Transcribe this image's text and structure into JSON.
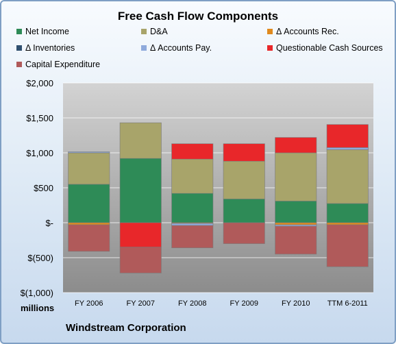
{
  "chart_data": {
    "type": "bar",
    "stacked": true,
    "title": "Free Cash Flow Components",
    "subtitle": "Windstream Corporation",
    "ylabel": "millions",
    "ylim": [
      -1000,
      2000
    ],
    "yticks": [
      2000,
      1500,
      1000,
      500,
      0,
      -500,
      -1000
    ],
    "ytick_labels": [
      "$2,000",
      "$1,500",
      "$1,000",
      "$500",
      "$-",
      "$(500)",
      "$(1,000)"
    ],
    "grid": true,
    "legend_position": "top",
    "categories": [
      "FY 2006",
      "FY 2007",
      "FY 2008",
      "FY 2009",
      "FY 2010",
      "TTM 6-2011"
    ],
    "series": [
      {
        "name": "Net Income",
        "color": "#2e8b57",
        "values": [
          550,
          920,
          420,
          340,
          310,
          275
        ]
      },
      {
        "name": "D&A",
        "color": "#a8a46a",
        "values": [
          450,
          510,
          490,
          540,
          690,
          770
        ]
      },
      {
        "name": "Δ Accounts Rec.",
        "color": "#e08a1e",
        "values": [
          -30,
          0,
          -10,
          0,
          -30,
          -30
        ]
      },
      {
        "name": "Δ Inventories",
        "color": "#2f4f6f",
        "values": [
          0,
          0,
          0,
          0,
          0,
          0
        ]
      },
      {
        "name": "Δ Accounts Pay.",
        "color": "#8faadc",
        "values": [
          15,
          0,
          -30,
          0,
          -20,
          30
        ]
      },
      {
        "name": "Questionable Cash Sources",
        "color": "#e8272a",
        "values": [
          0,
          -350,
          220,
          250,
          220,
          330
        ]
      },
      {
        "name": "Capital Expenditure",
        "color": "#b05a5a",
        "values": [
          -380,
          -370,
          -320,
          -300,
          -400,
          -600
        ]
      }
    ]
  }
}
